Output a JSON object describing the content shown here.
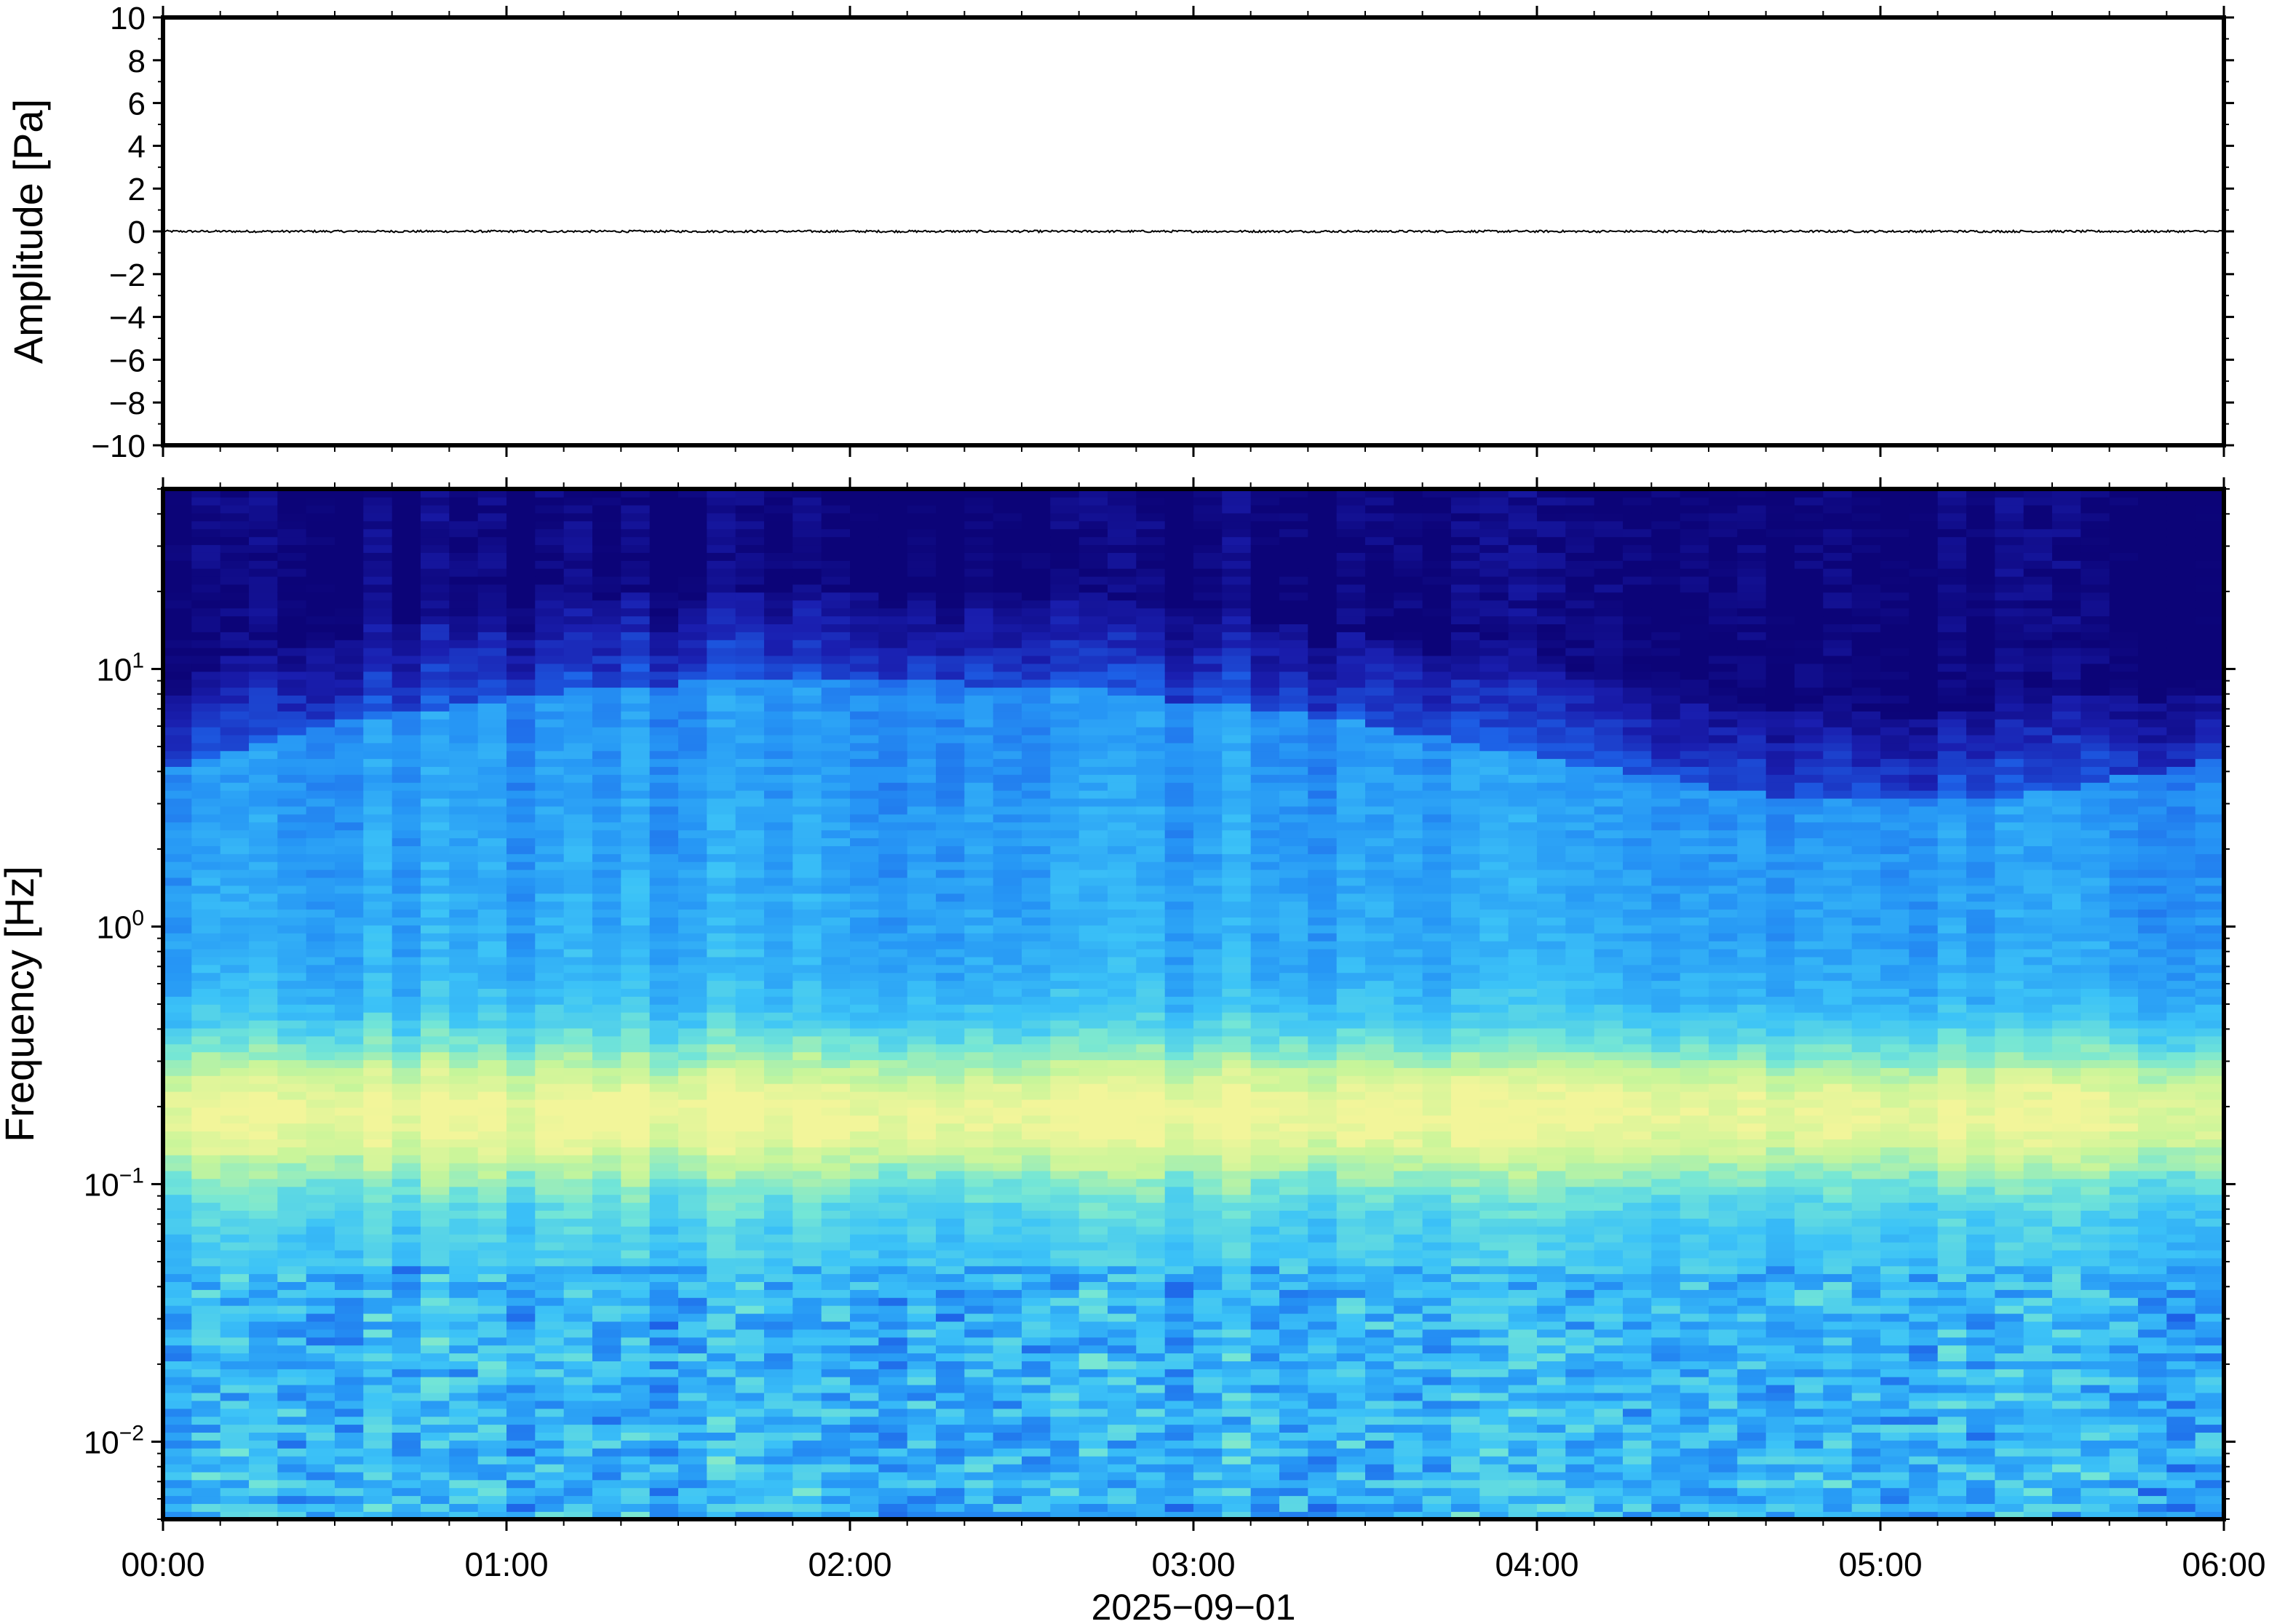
{
  "chart_data": [
    {
      "type": "line",
      "panel": "waveform",
      "ylabel": "Amplitude [Pa]",
      "ylim": [
        -10,
        10
      ],
      "yticks": [
        10,
        8,
        6,
        4,
        2,
        0,
        -2,
        -4,
        -6,
        -8,
        -10
      ],
      "ytick_labels": [
        "10",
        "8",
        "6",
        "4",
        "2",
        "0",
        "−2",
        "−4",
        "−6",
        "−8",
        "−10"
      ],
      "xlim_hours": [
        0,
        6
      ],
      "series": [
        {
          "values_description_free": true,
          "baseline": 0,
          "peak_abs_amplitude": 0.05,
          "color": "#000000"
        }
      ]
    },
    {
      "type": "heatmap",
      "panel": "spectrogram",
      "ylabel": "Frequency [Hz]",
      "yscale": "log",
      "ylim": [
        0.005,
        50
      ],
      "ytick_values": [
        10,
        1,
        0.1,
        0.01
      ],
      "ytick_labels": [
        {
          "base": "10",
          "exp": "1"
        },
        {
          "base": "10",
          "exp": "0"
        },
        {
          "base": "10",
          "exp": "−1"
        },
        {
          "base": "10",
          "exp": "−2"
        }
      ],
      "xlim_hours": [
        0,
        6
      ],
      "xticks_hours": [
        0,
        1,
        2,
        3,
        4,
        5,
        6
      ],
      "xtick_labels": [
        "00:00",
        "01:00",
        "02:00",
        "03:00",
        "04:00",
        "05:00",
        "06:00"
      ],
      "xlabel": "2025−09−01",
      "colormap": [
        "#0c0478",
        "#1a1fb0",
        "#1d5fe6",
        "#2696f5",
        "#3cc3f7",
        "#74e6d6",
        "#c6f59a",
        "#f2f59a"
      ],
      "grid": false
    }
  ]
}
